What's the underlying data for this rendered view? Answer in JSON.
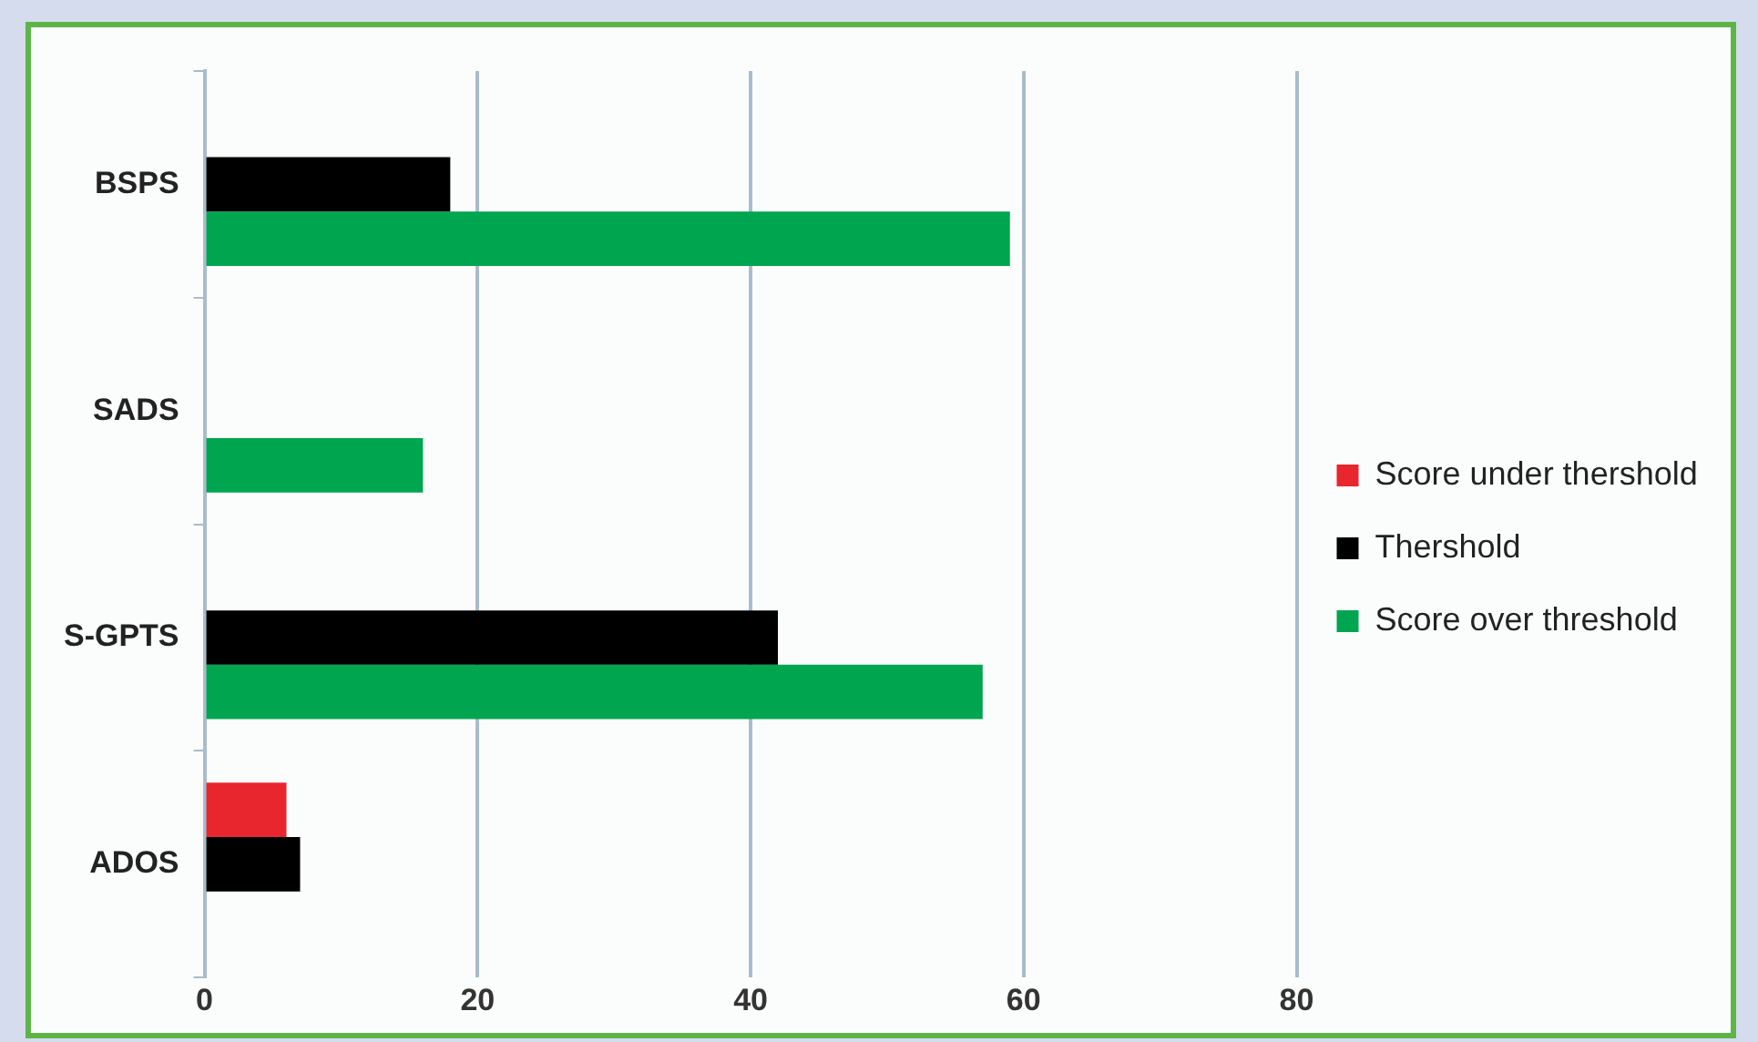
{
  "chart_data": {
    "type": "bar",
    "orientation": "horizontal",
    "categories": [
      "BSPS",
      "SADS",
      "S-GPTS",
      "ADOS"
    ],
    "series": [
      {
        "name": "Score under thershold",
        "color": "#e8262d",
        "values": [
          null,
          null,
          null,
          6
        ]
      },
      {
        "name": "Thershold",
        "color": "#000000",
        "values": [
          18,
          null,
          42,
          7
        ]
      },
      {
        "name": "Score over threshold",
        "color": "#00a550",
        "values": [
          59,
          16,
          57,
          null
        ]
      }
    ],
    "xlim": [
      0,
      80
    ],
    "xticks": [
      0,
      20,
      40,
      60,
      80
    ],
    "grid": "x",
    "legend": "right"
  }
}
